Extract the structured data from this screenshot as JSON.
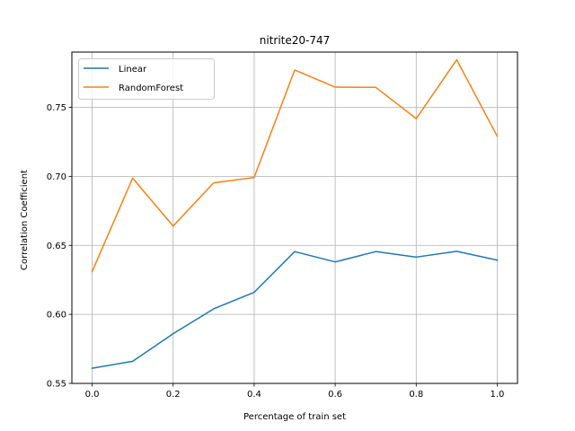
{
  "chart_data": {
    "type": "line",
    "title": "nitrite20-747",
    "xlabel": "Percentage of train set",
    "ylabel": "Correlation Coefficient",
    "x": [
      0.0,
      0.1,
      0.2,
      0.3,
      0.4,
      0.5,
      0.6,
      0.7,
      0.8,
      0.9,
      1.0
    ],
    "xlim": [
      -0.05,
      1.05
    ],
    "ylim": [
      0.55,
      0.79
    ],
    "xticks": [
      0.0,
      0.2,
      0.4,
      0.6,
      0.8,
      1.0
    ],
    "xtick_labels": [
      "0.0",
      "0.2",
      "0.4",
      "0.6",
      "0.8",
      "1.0"
    ],
    "yticks": [
      0.55,
      0.6,
      0.65,
      0.7,
      0.75
    ],
    "ytick_labels": [
      "0.55",
      "0.60",
      "0.65",
      "0.70",
      "0.75"
    ],
    "grid": true,
    "legend_position": "top-left",
    "series": [
      {
        "name": "Linear",
        "color": "#1f77b4",
        "values": [
          0.561,
          0.566,
          0.586,
          0.604,
          0.616,
          0.6455,
          0.638,
          0.6455,
          0.6415,
          0.6457,
          0.6393
        ]
      },
      {
        "name": "RandomForest",
        "color": "#ff7f0e",
        "values": [
          0.631,
          0.6987,
          0.664,
          0.6953,
          0.6992,
          0.777,
          0.7646,
          0.7645,
          0.7418,
          0.7844,
          0.729
        ]
      }
    ]
  }
}
